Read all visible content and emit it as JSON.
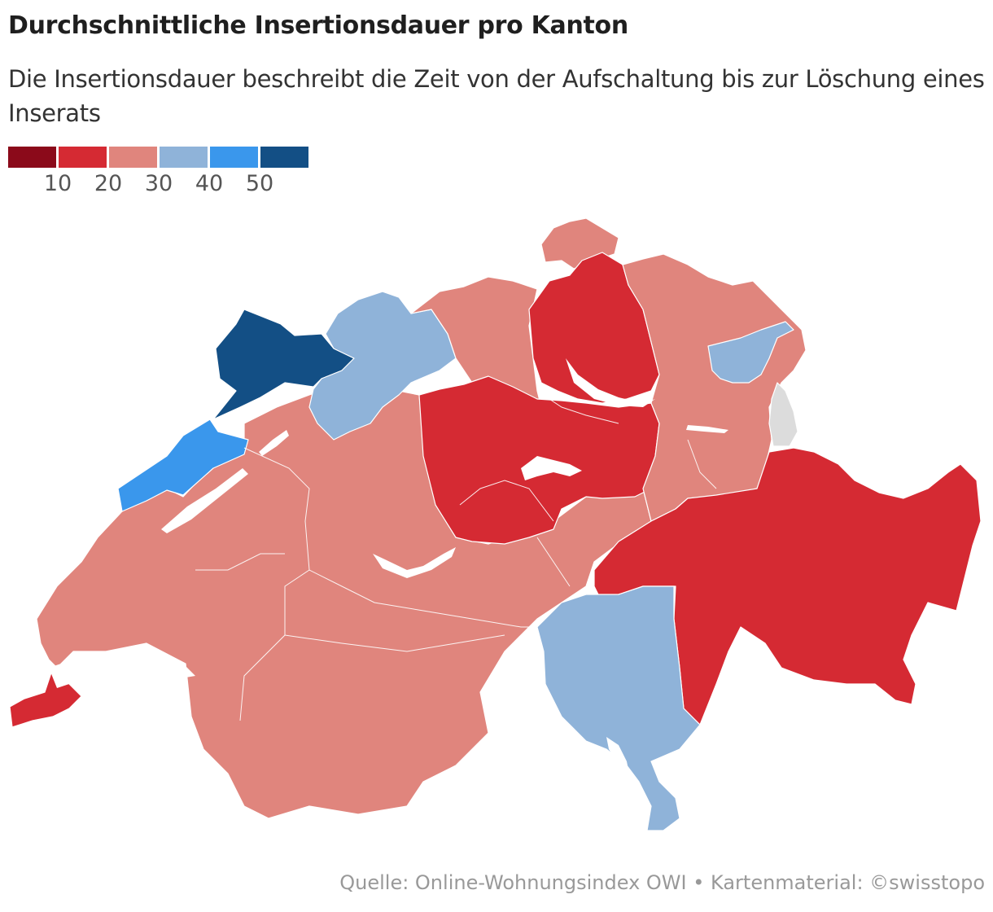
{
  "title": "Durchschnittliche Insertionsdauer pro Kanton",
  "subtitle": "Die Insertionsdauer beschreibt die Zeit von der Aufschaltung bis zur Löschung eines Inserats",
  "legend": {
    "colors": [
      "#8b0a1a",
      "#d52a33",
      "#e0857d",
      "#8fb3d9",
      "#3a97ec",
      "#134f85"
    ],
    "ticks": [
      "10",
      "20",
      "30",
      "40",
      "50"
    ]
  },
  "map": {
    "no_data_color": "#dcdcdc",
    "lake_color": "#ffffff",
    "regions": [
      {
        "name": "Genève",
        "bin": 1
      },
      {
        "name": "Vaud",
        "bin": 2
      },
      {
        "name": "Neuchâtel",
        "bin": 4
      },
      {
        "name": "Jura",
        "bin": 5
      },
      {
        "name": "Solothurn",
        "bin": 3
      },
      {
        "name": "Basel-Landschaft",
        "bin": 3
      },
      {
        "name": "Bern",
        "bin": 2
      },
      {
        "name": "Fribourg",
        "bin": 2
      },
      {
        "name": "Valais",
        "bin": 2
      },
      {
        "name": "Aargau",
        "bin": 2
      },
      {
        "name": "Schaffhausen",
        "bin": 2
      },
      {
        "name": "Zürich",
        "bin": 1
      },
      {
        "name": "Luzern",
        "bin": 1
      },
      {
        "name": "Zug",
        "bin": 1
      },
      {
        "name": "Schwyz",
        "bin": 1
      },
      {
        "name": "Obwalden",
        "bin": 1
      },
      {
        "name": "Nidwalden",
        "bin": 1
      },
      {
        "name": "Uri",
        "bin": 2
      },
      {
        "name": "Glarus",
        "bin": 2
      },
      {
        "name": "Thurgau",
        "bin": 2
      },
      {
        "name": "St. Gallen",
        "bin": 2
      },
      {
        "name": "Appenzell",
        "bin": 3
      },
      {
        "name": "Graubünden",
        "bin": 1
      },
      {
        "name": "Ticino",
        "bin": 3
      },
      {
        "name": "Liechtenstein",
        "bin": null
      }
    ]
  },
  "source": "Quelle: Online-Wohnungsindex OWI • Kartenmaterial: ©swisstopo"
}
